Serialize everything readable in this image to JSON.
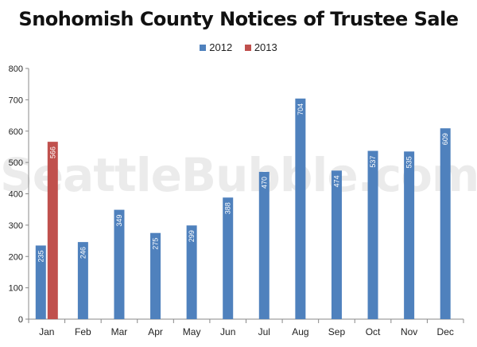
{
  "chart_data": {
    "type": "bar",
    "title": "Snohomish County Notices of Trustee Sale",
    "categories": [
      "Jan",
      "Feb",
      "Mar",
      "Apr",
      "May",
      "Jun",
      "Jul",
      "Aug",
      "Sep",
      "Oct",
      "Nov",
      "Dec"
    ],
    "series": [
      {
        "name": "2012",
        "color": "#4f81bd",
        "values": [
          235,
          246,
          349,
          275,
          299,
          388,
          470,
          704,
          474,
          537,
          535,
          609
        ]
      },
      {
        "name": "2013",
        "color": "#c0504d",
        "values": [
          566,
          null,
          null,
          null,
          null,
          null,
          null,
          null,
          null,
          null,
          null,
          null
        ]
      }
    ],
    "ylim": [
      0,
      800
    ],
    "yticks": [
      0,
      100,
      200,
      300,
      400,
      500,
      600,
      700,
      800
    ],
    "legend_position": "top",
    "grid": false,
    "watermark": "SeattleBubble.com"
  }
}
